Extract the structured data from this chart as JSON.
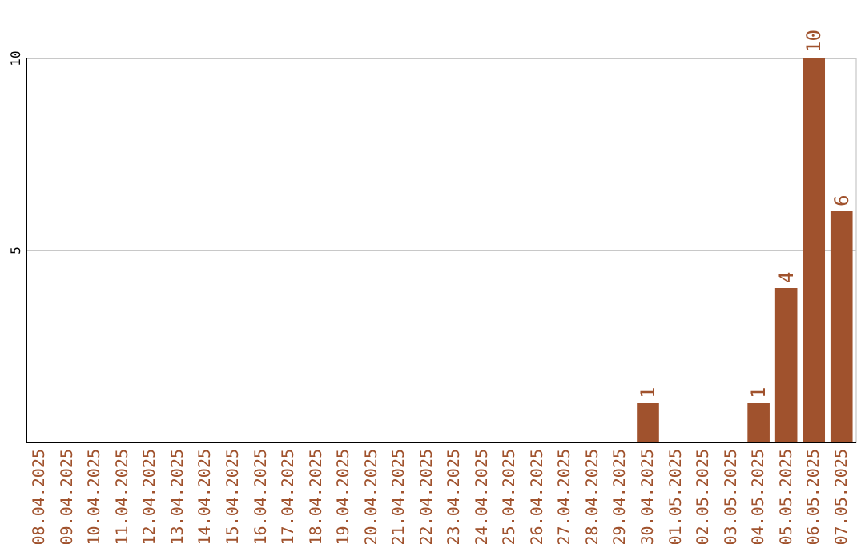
{
  "chart_data": {
    "type": "bar",
    "categories": [
      "08.04.2025",
      "09.04.2025",
      "10.04.2025",
      "11.04.2025",
      "12.04.2025",
      "13.04.2025",
      "14.04.2025",
      "15.04.2025",
      "16.04.2025",
      "17.04.2025",
      "18.04.2025",
      "19.04.2025",
      "20.04.2025",
      "21.04.2025",
      "22.04.2025",
      "23.04.2025",
      "24.04.2025",
      "25.04.2025",
      "26.04.2025",
      "27.04.2025",
      "28.04.2025",
      "29.04.2025",
      "30.04.2025",
      "01.05.2025",
      "02.05.2025",
      "03.05.2025",
      "04.05.2025",
      "05.05.2025",
      "06.05.2025",
      "07.05.2025"
    ],
    "values": [
      0,
      0,
      0,
      0,
      0,
      0,
      0,
      0,
      0,
      0,
      0,
      0,
      0,
      0,
      0,
      0,
      0,
      0,
      0,
      0,
      0,
      0,
      1,
      0,
      0,
      0,
      1,
      4,
      10,
      6
    ],
    "value_labels": [
      null,
      null,
      null,
      null,
      null,
      null,
      null,
      null,
      null,
      null,
      null,
      null,
      null,
      null,
      null,
      null,
      null,
      null,
      null,
      null,
      null,
      null,
      "1",
      null,
      null,
      null,
      "1",
      "4",
      "10",
      "6"
    ],
    "color": "#a0522d",
    "ylim": [
      0,
      10
    ],
    "yticks": [
      5,
      10
    ],
    "grid": "y"
  }
}
